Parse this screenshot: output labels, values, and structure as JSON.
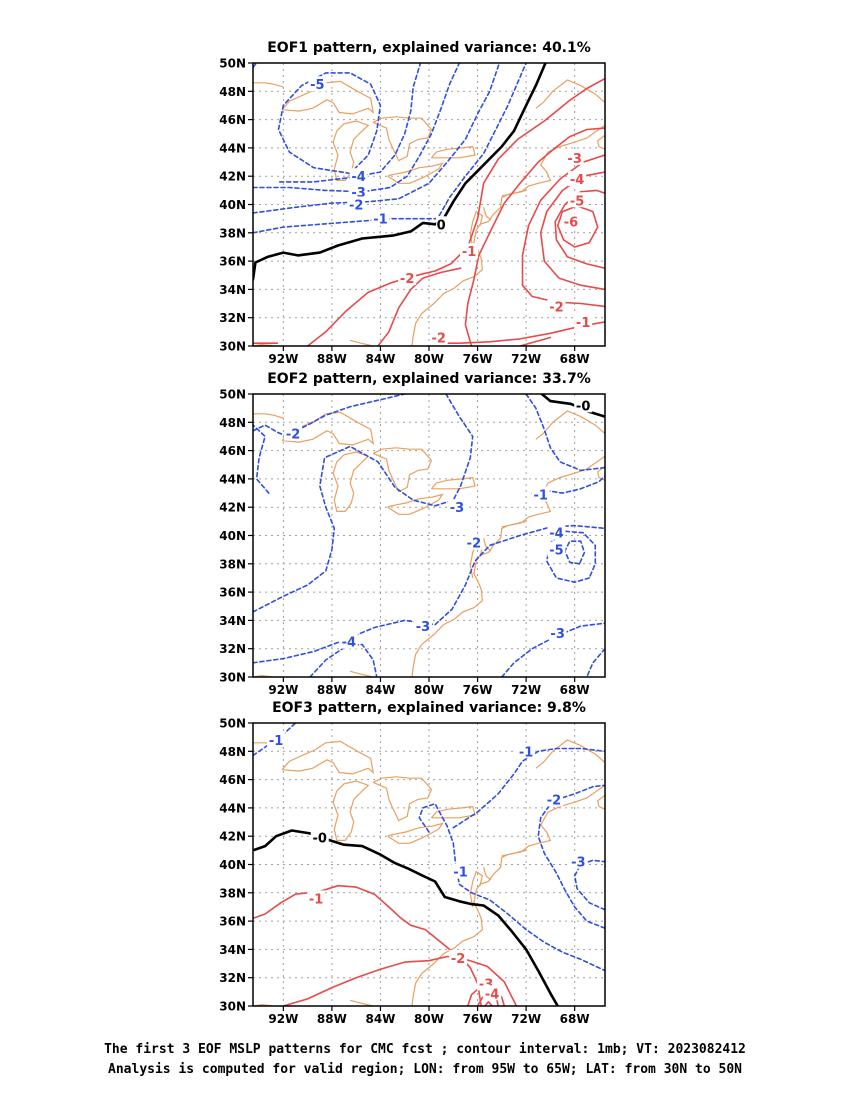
{
  "panels": [
    {
      "title": "EOF1 pattern, explained variance: 40.1%",
      "lat_labels": [
        "50N",
        "48N",
        "46N",
        "44N",
        "42N",
        "40N",
        "38N",
        "36N",
        "34N",
        "32N",
        "30N"
      ],
      "lon_labels": [
        "92W",
        "88W",
        "84W",
        "80W",
        "76W",
        "72W",
        "68W"
      ],
      "contour_labels": [
        {
          "text": "-5",
          "lon": -89.2,
          "lat": 48.5,
          "sign": "neg"
        },
        {
          "text": "-4",
          "lon": -85.8,
          "lat": 42.0,
          "sign": "neg"
        },
        {
          "text": "-3",
          "lon": -85.8,
          "lat": 40.9,
          "sign": "neg"
        },
        {
          "text": "-2",
          "lon": -86.0,
          "lat": 40.0,
          "sign": "neg"
        },
        {
          "text": "-1",
          "lon": -84.0,
          "lat": 39.0,
          "sign": "neg"
        },
        {
          "text": "0",
          "lon": -79.0,
          "lat": 38.6,
          "sign": "zero"
        },
        {
          "text": "-1",
          "lon": -76.7,
          "lat": 36.7,
          "sign": "pos"
        },
        {
          "text": "-2",
          "lon": -81.8,
          "lat": 34.8,
          "sign": "pos"
        },
        {
          "text": "-2",
          "lon": -79.2,
          "lat": 30.6,
          "sign": "pos"
        },
        {
          "text": "-3",
          "lon": -68.0,
          "lat": 43.3,
          "sign": "pos"
        },
        {
          "text": "-4",
          "lon": -67.8,
          "lat": 41.8,
          "sign": "pos"
        },
        {
          "text": "-5",
          "lon": -67.8,
          "lat": 40.3,
          "sign": "pos"
        },
        {
          "text": "-6",
          "lon": -68.3,
          "lat": 38.8,
          "sign": "pos"
        },
        {
          "text": "-2",
          "lon": -69.5,
          "lat": 32.8,
          "sign": "pos"
        },
        {
          "text": "-1",
          "lon": -67.3,
          "lat": 31.7,
          "sign": "pos"
        }
      ]
    },
    {
      "title": "EOF2 pattern, explained variance: 33.7%",
      "lat_labels": [
        "50N",
        "48N",
        "46N",
        "44N",
        "42N",
        "40N",
        "38N",
        "36N",
        "34N",
        "32N",
        "30N"
      ],
      "lon_labels": [
        "92W",
        "88W",
        "84W",
        "80W",
        "76W",
        "72W",
        "68W"
      ],
      "contour_labels": [
        {
          "text": "-0",
          "lon": -67.3,
          "lat": 49.2,
          "sign": "zero"
        },
        {
          "text": "-2",
          "lon": -91.2,
          "lat": 47.2,
          "sign": "neg"
        },
        {
          "text": "-3",
          "lon": -77.7,
          "lat": 42.0,
          "sign": "neg"
        },
        {
          "text": "-1",
          "lon": -70.8,
          "lat": 42.9,
          "sign": "neg"
        },
        {
          "text": "-2",
          "lon": -76.3,
          "lat": 39.5,
          "sign": "neg"
        },
        {
          "text": "-4",
          "lon": -69.5,
          "lat": 40.2,
          "sign": "neg"
        },
        {
          "text": "-5",
          "lon": -69.5,
          "lat": 39.0,
          "sign": "neg"
        },
        {
          "text": "-3",
          "lon": -80.5,
          "lat": 33.6,
          "sign": "neg"
        },
        {
          "text": "-3",
          "lon": -69.4,
          "lat": 33.1,
          "sign": "neg"
        },
        {
          "text": "-4",
          "lon": -86.6,
          "lat": 32.5,
          "sign": "neg"
        }
      ]
    },
    {
      "title": "EOF3 pattern, explained variance: 9.8%",
      "lat_labels": [
        "50N",
        "48N",
        "46N",
        "44N",
        "42N",
        "40N",
        "38N",
        "36N",
        "34N",
        "32N",
        "30N"
      ],
      "lon_labels": [
        "92W",
        "88W",
        "84W",
        "80W",
        "76W",
        "72W",
        "68W"
      ],
      "contour_labels": [
        {
          "text": "-1",
          "lon": -92.6,
          "lat": 48.8,
          "sign": "neg"
        },
        {
          "text": "-1",
          "lon": -72.0,
          "lat": 48.0,
          "sign": "neg"
        },
        {
          "text": "-2",
          "lon": -69.7,
          "lat": 44.6,
          "sign": "neg"
        },
        {
          "text": "-3",
          "lon": -67.7,
          "lat": 40.2,
          "sign": "neg"
        },
        {
          "text": "-1",
          "lon": -77.4,
          "lat": 39.5,
          "sign": "neg"
        },
        {
          "text": "-0",
          "lon": -89.0,
          "lat": 41.9,
          "sign": "zero"
        },
        {
          "text": "-1",
          "lon": -89.3,
          "lat": 37.6,
          "sign": "pos"
        },
        {
          "text": "-2",
          "lon": -77.6,
          "lat": 33.4,
          "sign": "pos"
        },
        {
          "text": "-3",
          "lon": -75.3,
          "lat": 31.6,
          "sign": "pos"
        },
        {
          "text": "-4",
          "lon": -74.8,
          "lat": 30.9,
          "sign": "pos"
        }
      ]
    }
  ],
  "caption": {
    "line1": "The first 3 EOF MSLP patterns for CMC fcst ; contour interval: 1mb; VT: 2023082412",
    "line2": "Analysis is computed for valid region; LON: from 95W to 65W; LAT: from 30N to 50N"
  },
  "colors": {
    "positive": "#e84a4a",
    "negative": "#2f4fe0",
    "zero": "#000000",
    "coast": "#e8a060",
    "grid": "#a0a0a0"
  }
}
